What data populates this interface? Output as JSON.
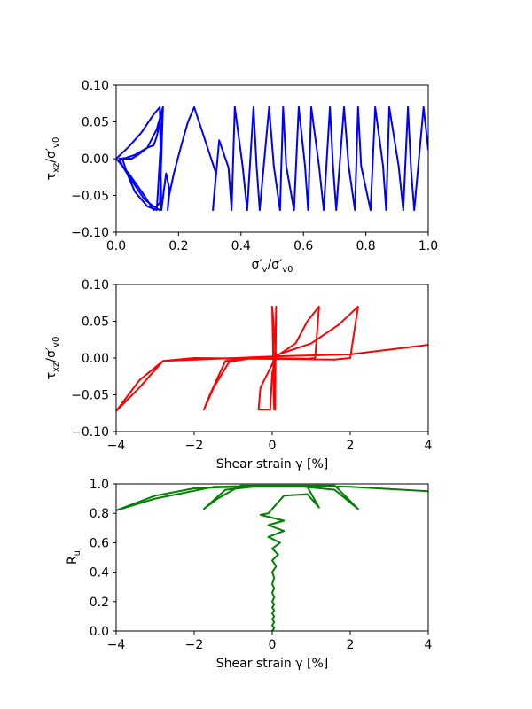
{
  "chart_data": [
    {
      "type": "line",
      "title": "",
      "xlabel": "σ'v/σ'v0",
      "ylabel": "τxz/σ'v0",
      "xlim": [
        0.0,
        1.0
      ],
      "ylim": [
        -0.1,
        0.1
      ],
      "xticks": [
        "0.0",
        "0.2",
        "0.4",
        "0.6",
        "0.8",
        "1.0"
      ],
      "yticks": [
        "−0.10",
        "−0.05",
        "0.00",
        "0.05",
        "0.10"
      ],
      "grid": false,
      "series": [
        {
          "color": "#0000ff",
          "x": [
            1.0,
            0.985,
            0.955,
            0.945,
            0.935,
            0.92,
            0.905,
            0.875,
            0.865,
            0.855,
            0.83,
            0.815,
            0.785,
            0.775,
            0.765,
            0.745,
            0.73,
            0.705,
            0.695,
            0.685,
            0.665,
            0.65,
            0.625,
            0.615,
            0.605,
            0.585,
            0.57,
            0.545,
            0.535,
            0.525,
            0.505,
            0.49,
            0.46,
            0.45,
            0.44,
            0.42,
            0.405,
            0.38,
            0.37,
            0.36,
            0.33,
            0.31,
            0.32,
            0.25,
            0.23,
            0.21,
            0.185,
            0.17,
            0.165,
            0.17,
            0.16,
            0.145,
            0.14,
            0.12,
            0.08,
            0.04,
            0.0,
            0.04,
            0.09,
            0.12,
            0.14,
            0.15,
            0.13,
            0.1,
            0.07,
            0.05,
            0.03,
            0.02,
            0.035,
            0.06,
            0.1,
            0.13,
            0.15,
            0.14,
            0.13,
            0.12,
            0.1,
            0.06,
            0.03,
            0.015,
            0.01,
            0.02,
            0.05,
            0.09,
            0.12,
            0.14
          ],
          "y": [
            0.012,
            0.07,
            -0.07,
            -0.015,
            0.07,
            -0.07,
            -0.01,
            0.07,
            -0.07,
            -0.01,
            0.07,
            -0.07,
            -0.01,
            0.07,
            -0.07,
            -0.01,
            0.07,
            -0.07,
            -0.01,
            0.07,
            -0.07,
            -0.01,
            0.07,
            -0.07,
            -0.01,
            0.07,
            -0.07,
            -0.01,
            0.07,
            -0.07,
            -0.01,
            0.07,
            -0.07,
            -0.01,
            0.07,
            -0.07,
            -0.01,
            0.07,
            -0.07,
            -0.012,
            0.025,
            -0.07,
            -0.02,
            0.07,
            0.05,
            0.02,
            -0.02,
            -0.05,
            -0.07,
            -0.04,
            -0.02,
            -0.07,
            0.07,
            0.06,
            0.035,
            0.016,
            0.0,
            -0.02,
            -0.05,
            -0.07,
            -0.06,
            0.07,
            0.04,
            0.015,
            0.005,
            0.0,
            0.0,
            0.0,
            -0.02,
            -0.045,
            -0.065,
            -0.07,
            0.07,
            0.05,
            0.03,
            0.018,
            0.015,
            0.005,
            0.001,
            0.0,
            0.0,
            -0.01,
            -0.03,
            -0.055,
            -0.065,
            -0.07
          ]
        }
      ]
    },
    {
      "type": "line",
      "title": "",
      "xlabel": "Shear strain γ [%]",
      "ylabel": "τxz/σ'v0",
      "xlim": [
        -4,
        4
      ],
      "ylim": [
        -0.1,
        0.1
      ],
      "xticks": [
        "−4",
        "−2",
        "0",
        "2",
        "4"
      ],
      "yticks": [
        "−0.10",
        "−0.05",
        "0.00",
        "0.05",
        "0.10"
      ],
      "grid": false,
      "series": [
        {
          "color": "#ff0000",
          "x": [
            0.05,
            0.0,
            0.07,
            0.1,
            0.05,
            0.0,
            0.1,
            0.0,
            -0.05,
            -0.35,
            -0.3,
            0.1,
            0.6,
            0.9,
            1.2,
            1.1,
            0.9,
            -0.5,
            -1.1,
            -1.5,
            -1.75,
            -1.6,
            -1.2,
            0.0,
            1.0,
            1.7,
            2.0,
            2.2,
            2.0,
            1.6,
            -2.0,
            -2.8,
            -3.4,
            -4.0,
            -3.4,
            -2.8,
            0.0,
            2.0,
            4.0
          ],
          "y": [
            -0.07,
            0.07,
            -0.07,
            0.07,
            -0.07,
            0.07,
            0.0,
            -0.02,
            -0.07,
            -0.07,
            -0.04,
            0.002,
            0.02,
            0.05,
            0.07,
            0.0,
            -0.001,
            0.0,
            -0.005,
            -0.04,
            -0.07,
            -0.05,
            -0.004,
            0.002,
            0.02,
            0.045,
            0.06,
            0.07,
            0.0,
            -0.002,
            0.0,
            -0.004,
            -0.03,
            -0.072,
            -0.04,
            -0.004,
            0.002,
            0.005,
            0.018
          ]
        }
      ]
    },
    {
      "type": "line",
      "title": "",
      "xlabel": "Shear strain γ [%]",
      "ylabel": "Ru",
      "xlim": [
        -4,
        4
      ],
      "ylim": [
        0.0,
        1.0
      ],
      "xticks": [
        "−4",
        "−2",
        "0",
        "2",
        "4"
      ],
      "yticks": [
        "0.0",
        "0.2",
        "0.4",
        "0.6",
        "0.8",
        "1.0"
      ],
      "grid": false,
      "series": [
        {
          "color": "#008000",
          "x": [
            0.0,
            0.05,
            0.0,
            0.05,
            0.0,
            0.05,
            0.0,
            0.05,
            0.0,
            0.05,
            0.0,
            0.05,
            0.0,
            0.05,
            0.0,
            0.05,
            0.0,
            0.1,
            0.0,
            0.15,
            0.0,
            0.2,
            -0.1,
            0.3,
            -0.1,
            0.3,
            -0.3,
            -0.1,
            0.3,
            0.9,
            1.2,
            0.9,
            0.3,
            -0.5,
            -1.2,
            -1.75,
            -1.4,
            -0.8,
            0.5,
            1.6,
            2.2,
            1.6,
            0.0,
            -2.0,
            -3.0,
            -4.0,
            -3.0,
            -1.5,
            0.0,
            2.0,
            4.0
          ],
          "y": [
            0.0,
            0.02,
            0.04,
            0.06,
            0.08,
            0.1,
            0.12,
            0.14,
            0.16,
            0.18,
            0.2,
            0.23,
            0.26,
            0.29,
            0.32,
            0.36,
            0.4,
            0.44,
            0.48,
            0.52,
            0.56,
            0.6,
            0.64,
            0.68,
            0.72,
            0.75,
            0.79,
            0.8,
            0.92,
            0.93,
            0.84,
            0.98,
            0.98,
            0.98,
            0.96,
            0.83,
            0.9,
            0.99,
            0.99,
            0.96,
            0.83,
            0.99,
            0.99,
            0.97,
            0.92,
            0.82,
            0.9,
            0.98,
            0.99,
            0.98,
            0.95
          ]
        }
      ]
    }
  ]
}
